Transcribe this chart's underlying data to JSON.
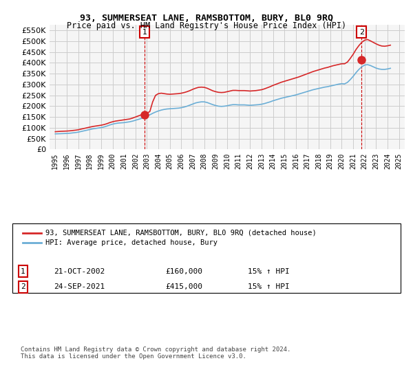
{
  "title": "93, SUMMERSEAT LANE, RAMSBOTTOM, BURY, BL0 9RQ",
  "subtitle": "Price paid vs. HM Land Registry's House Price Index (HPI)",
  "ylim": [
    0,
    575000
  ],
  "yticks": [
    0,
    50000,
    100000,
    150000,
    200000,
    250000,
    300000,
    350000,
    400000,
    450000,
    500000,
    550000
  ],
  "sale1_date": 2002.8,
  "sale1_price": 160000,
  "sale1_label": "1",
  "sale2_date": 2021.73,
  "sale2_price": 415000,
  "sale2_label": "2",
  "legend_line1": "93, SUMMERSEAT LANE, RAMSBOTTOM, BURY, BL0 9RQ (detached house)",
  "legend_line2": "HPI: Average price, detached house, Bury",
  "table_row1": [
    "1",
    "21-OCT-2002",
    "£160,000",
    "15% ↑ HPI"
  ],
  "table_row2": [
    "2",
    "24-SEP-2021",
    "£415,000",
    "15% ↑ HPI"
  ],
  "footnote": "Contains HM Land Registry data © Crown copyright and database right 2024.\nThis data is licensed under the Open Government Licence v3.0.",
  "hpi_color": "#6baed6",
  "price_color": "#d62728",
  "grid_color": "#cccccc",
  "bg_color": "#f5f5f5",
  "annotation_box_color": "#cc0000",
  "hpi_data_x": [
    1995.0,
    1995.25,
    1995.5,
    1995.75,
    1996.0,
    1996.25,
    1996.5,
    1996.75,
    1997.0,
    1997.25,
    1997.5,
    1997.75,
    1998.0,
    1998.25,
    1998.5,
    1998.75,
    1999.0,
    1999.25,
    1999.5,
    1999.75,
    2000.0,
    2000.25,
    2000.5,
    2000.75,
    2001.0,
    2001.25,
    2001.5,
    2001.75,
    2002.0,
    2002.25,
    2002.5,
    2002.75,
    2003.0,
    2003.25,
    2003.5,
    2003.75,
    2004.0,
    2004.25,
    2004.5,
    2004.75,
    2005.0,
    2005.25,
    2005.5,
    2005.75,
    2006.0,
    2006.25,
    2006.5,
    2006.75,
    2007.0,
    2007.25,
    2007.5,
    2007.75,
    2008.0,
    2008.25,
    2008.5,
    2008.75,
    2009.0,
    2009.25,
    2009.5,
    2009.75,
    2010.0,
    2010.25,
    2010.5,
    2010.75,
    2011.0,
    2011.25,
    2011.5,
    2011.75,
    2012.0,
    2012.25,
    2012.5,
    2012.75,
    2013.0,
    2013.25,
    2013.5,
    2013.75,
    2014.0,
    2014.25,
    2014.5,
    2014.75,
    2015.0,
    2015.25,
    2015.5,
    2015.75,
    2016.0,
    2016.25,
    2016.5,
    2016.75,
    2017.0,
    2017.25,
    2017.5,
    2017.75,
    2018.0,
    2018.25,
    2018.5,
    2018.75,
    2019.0,
    2019.25,
    2019.5,
    2019.75,
    2020.0,
    2020.25,
    2020.5,
    2020.75,
    2021.0,
    2021.25,
    2021.5,
    2021.75,
    2022.0,
    2022.25,
    2022.5,
    2022.75,
    2023.0,
    2023.25,
    2023.5,
    2023.75,
    2024.0,
    2024.25
  ],
  "hpi_data_y": [
    72000,
    72500,
    73000,
    73500,
    74000,
    75000,
    76500,
    78000,
    80000,
    83000,
    86000,
    89000,
    92000,
    95000,
    97000,
    99000,
    101000,
    104000,
    108000,
    113000,
    117000,
    120000,
    122000,
    123000,
    124000,
    126000,
    128000,
    131000,
    135000,
    139000,
    143000,
    148000,
    154000,
    160000,
    167000,
    173000,
    178000,
    182000,
    185000,
    187000,
    188000,
    189000,
    190000,
    191000,
    193000,
    196000,
    200000,
    205000,
    210000,
    215000,
    218000,
    220000,
    220000,
    217000,
    212000,
    207000,
    203000,
    200000,
    199000,
    200000,
    202000,
    205000,
    207000,
    207000,
    206000,
    206000,
    206000,
    205000,
    204000,
    205000,
    206000,
    207000,
    209000,
    212000,
    216000,
    220000,
    225000,
    229000,
    233000,
    237000,
    240000,
    243000,
    246000,
    249000,
    252000,
    256000,
    260000,
    264000,
    268000,
    272000,
    276000,
    279000,
    282000,
    285000,
    288000,
    290000,
    293000,
    296000,
    299000,
    302000,
    304000,
    303000,
    310000,
    323000,
    338000,
    355000,
    370000,
    382000,
    390000,
    392000,
    388000,
    382000,
    376000,
    372000,
    370000,
    370000,
    372000,
    375000
  ],
  "price_data_x": [
    1995.0,
    1995.25,
    1995.5,
    1995.75,
    1996.0,
    1996.25,
    1996.5,
    1996.75,
    1997.0,
    1997.25,
    1997.5,
    1997.75,
    1998.0,
    1998.25,
    1998.5,
    1998.75,
    1999.0,
    1999.25,
    1999.5,
    1999.75,
    2000.0,
    2000.25,
    2000.5,
    2000.75,
    2001.0,
    2001.25,
    2001.5,
    2001.75,
    2002.0,
    2002.25,
    2002.5,
    2002.75,
    2003.0,
    2003.25,
    2003.5,
    2003.75,
    2004.0,
    2004.25,
    2004.5,
    2004.75,
    2005.0,
    2005.25,
    2005.5,
    2005.75,
    2006.0,
    2006.25,
    2006.5,
    2006.75,
    2007.0,
    2007.25,
    2007.5,
    2007.75,
    2008.0,
    2008.25,
    2008.5,
    2008.75,
    2009.0,
    2009.25,
    2009.5,
    2009.75,
    2010.0,
    2010.25,
    2010.5,
    2010.75,
    2011.0,
    2011.25,
    2011.5,
    2011.75,
    2012.0,
    2012.25,
    2012.5,
    2012.75,
    2013.0,
    2013.25,
    2013.5,
    2013.75,
    2014.0,
    2014.25,
    2014.5,
    2014.75,
    2015.0,
    2015.25,
    2015.5,
    2015.75,
    2016.0,
    2016.25,
    2016.5,
    2016.75,
    2017.0,
    2017.25,
    2017.5,
    2017.75,
    2018.0,
    2018.25,
    2018.5,
    2018.75,
    2019.0,
    2019.25,
    2019.5,
    2019.75,
    2020.0,
    2020.25,
    2020.5,
    2020.75,
    2021.0,
    2021.25,
    2021.5,
    2021.75,
    2022.0,
    2022.25,
    2022.5,
    2022.75,
    2023.0,
    2023.25,
    2023.5,
    2023.75,
    2024.0,
    2024.25
  ],
  "price_data_y": [
    82000,
    83000,
    84000,
    84500,
    85000,
    86000,
    87500,
    89000,
    91000,
    94000,
    97000,
    100000,
    103000,
    106000,
    108000,
    110000,
    112000,
    115000,
    119000,
    124000,
    128000,
    131000,
    133000,
    135000,
    137000,
    139000,
    141000,
    145000,
    150000,
    155000,
    160000,
    160000,
    168000,
    175000,
    220000,
    250000,
    258000,
    260000,
    258000,
    256000,
    255000,
    256000,
    257000,
    258000,
    260000,
    263000,
    267000,
    272000,
    278000,
    283000,
    287000,
    288000,
    287000,
    283000,
    277000,
    271000,
    267000,
    264000,
    263000,
    264000,
    267000,
    270000,
    273000,
    273000,
    272000,
    272000,
    272000,
    271000,
    270000,
    271000,
    272000,
    274000,
    276000,
    280000,
    285000,
    290000,
    296000,
    301000,
    306000,
    311000,
    315000,
    319000,
    323000,
    327000,
    331000,
    335000,
    340000,
    345000,
    350000,
    355000,
    360000,
    364000,
    368000,
    372000,
    376000,
    379000,
    383000,
    387000,
    390000,
    393000,
    396000,
    396000,
    404000,
    421000,
    440000,
    462000,
    480000,
    495000,
    505000,
    508000,
    502000,
    495000,
    488000,
    482000,
    478000,
    477000,
    479000,
    482000
  ],
  "xlim": [
    1994.5,
    2025.5
  ],
  "xtick_years": [
    1995,
    1996,
    1997,
    1998,
    1999,
    2000,
    2001,
    2002,
    2003,
    2004,
    2005,
    2006,
    2007,
    2008,
    2009,
    2010,
    2011,
    2012,
    2013,
    2014,
    2015,
    2016,
    2017,
    2018,
    2019,
    2020,
    2021,
    2022,
    2023,
    2024,
    2025
  ]
}
